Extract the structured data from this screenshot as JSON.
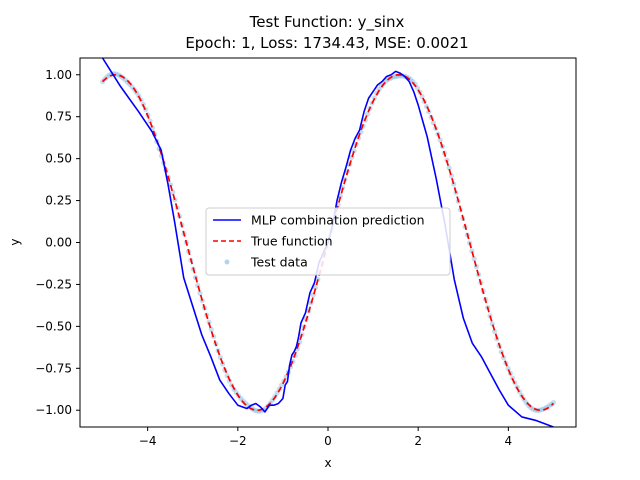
{
  "chart_data": {
    "type": "line",
    "title": "Test Function: y_sinx",
    "subtitle": "Epoch: 1, Loss: 1734.43, MSE: 0.0021",
    "xlabel": "x",
    "ylabel": "y",
    "xlim": [
      -5.5,
      5.5
    ],
    "ylim": [
      -1.1,
      1.1
    ],
    "x_ticks": [
      -4,
      -2,
      0,
      2,
      4
    ],
    "x_tick_labels": [
      "−4",
      "−2",
      "0",
      "2",
      "4"
    ],
    "y_ticks": [
      1.0,
      0.75,
      0.5,
      0.25,
      0.0,
      -0.25,
      -0.5,
      -0.75,
      -1.0
    ],
    "y_tick_labels": [
      "1.00",
      "0.75",
      "0.50",
      "0.25",
      "0.00",
      "−0.25",
      "−0.50",
      "−0.75",
      "−1.00"
    ],
    "grid": false,
    "legend_position": "center",
    "series": [
      {
        "name": "MLP combination prediction",
        "kind": "line",
        "color": "#0000ff",
        "x": [
          -5.0,
          -4.6,
          -4.2,
          -3.9,
          -3.7,
          -3.55,
          -3.4,
          -3.2,
          -3.0,
          -2.8,
          -2.6,
          -2.4,
          -2.2,
          -2.0,
          -1.8,
          -1.7,
          -1.6,
          -1.5,
          -1.4,
          -1.3,
          -1.2,
          -1.1,
          -1.0,
          -0.95,
          -0.9,
          -0.85,
          -0.8,
          -0.75,
          -0.7,
          -0.65,
          -0.6,
          -0.5,
          -0.4,
          -0.3,
          -0.2,
          -0.1,
          0.0,
          0.1,
          0.2,
          0.3,
          0.4,
          0.5,
          0.6,
          0.7,
          0.8,
          0.9,
          1.0,
          1.1,
          1.2,
          1.3,
          1.4,
          1.5,
          1.6,
          1.7,
          1.8,
          1.9,
          2.0,
          2.2,
          2.4,
          2.6,
          2.8,
          3.0,
          3.2,
          3.4,
          3.6,
          3.8,
          4.0,
          4.3,
          4.6,
          4.8,
          5.0
        ],
        "y": [
          1.1,
          0.93,
          0.78,
          0.66,
          0.55,
          0.35,
          0.12,
          -0.21,
          -0.38,
          -0.55,
          -0.68,
          -0.82,
          -0.9,
          -0.97,
          -0.99,
          -0.97,
          -0.96,
          -0.98,
          -1.01,
          -0.97,
          -0.97,
          -0.96,
          -0.93,
          -0.85,
          -0.83,
          -0.73,
          -0.67,
          -0.65,
          -0.62,
          -0.56,
          -0.48,
          -0.42,
          -0.3,
          -0.24,
          -0.12,
          -0.06,
          0.0,
          0.1,
          0.25,
          0.36,
          0.45,
          0.55,
          0.62,
          0.67,
          0.78,
          0.86,
          0.9,
          0.94,
          0.96,
          0.99,
          1.0,
          1.02,
          1.01,
          0.99,
          0.96,
          0.9,
          0.82,
          0.63,
          0.38,
          0.1,
          -0.22,
          -0.45,
          -0.6,
          -0.68,
          -0.78,
          -0.88,
          -0.97,
          -1.04,
          -1.06,
          -1.08,
          -1.1
        ]
      },
      {
        "name": "True function",
        "kind": "dashed-line",
        "color": "#ff0000",
        "function": "sin(x)",
        "x_range": [
          -5.0,
          5.0
        ]
      },
      {
        "name": "Test data",
        "kind": "scatter",
        "color": "#7fb8e0",
        "function": "sin(x)",
        "x_range": [
          -5.0,
          5.0
        ],
        "count": 200
      }
    ]
  }
}
